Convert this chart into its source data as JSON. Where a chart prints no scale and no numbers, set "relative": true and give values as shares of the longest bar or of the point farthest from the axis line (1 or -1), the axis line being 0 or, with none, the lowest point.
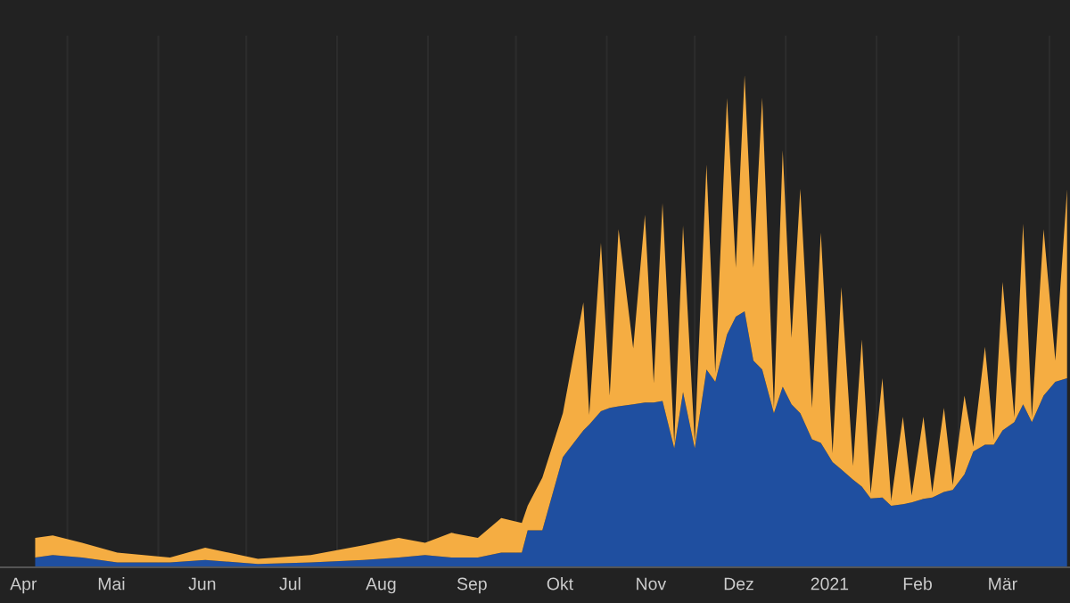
{
  "chart_data": {
    "type": "area",
    "stacked": true,
    "relative": true,
    "grid": "x",
    "legend": false,
    "x": [
      "2020-04-20",
      "2020-04-26",
      "2020-05-06",
      "2020-05-18",
      "2020-06-05",
      "2020-06-17",
      "2020-07-05",
      "2020-07-23",
      "2020-08-10",
      "2020-08-22",
      "2020-08-31",
      "2020-09-09",
      "2020-09-18",
      "2020-09-26",
      "2020-10-03",
      "2020-10-05",
      "2020-10-10",
      "2020-10-17",
      "2020-10-24",
      "2020-10-26",
      "2020-10-30",
      "2020-11-02",
      "2020-11-05",
      "2020-11-10",
      "2020-11-14",
      "2020-11-17",
      "2020-11-20",
      "2020-11-24",
      "2020-11-27",
      "2020-12-01",
      "2020-12-05",
      "2020-12-08",
      "2020-12-12",
      "2020-12-15",
      "2020-12-18",
      "2020-12-21",
      "2020-12-24",
      "2020-12-28",
      "2020-12-31",
      "2021-01-03",
      "2021-01-06",
      "2021-01-10",
      "2021-01-13",
      "2021-01-17",
      "2021-01-20",
      "2021-01-24",
      "2021-01-27",
      "2021-01-30",
      "2021-02-03",
      "2021-02-06",
      "2021-02-10",
      "2021-02-13",
      "2021-02-17",
      "2021-02-20",
      "2021-02-24",
      "2021-02-27",
      "2021-03-03",
      "2021-03-06",
      "2021-03-10",
      "2021-03-13",
      "2021-03-16",
      "2021-03-20",
      "2021-03-23",
      "2021-03-26",
      "2021-03-30",
      "2021-04-03",
      "2021-04-07"
    ],
    "series": [
      {
        "color": "#1f4fa0",
        "values": [
          0.02,
          0.025,
          0.02,
          0.01,
          0.01,
          0.015,
          0.007,
          0.01,
          0.015,
          0.02,
          0.025,
          0.02,
          0.02,
          0.03,
          0.03,
          0.075,
          0.075,
          0.224,
          0.278,
          0.29,
          0.317,
          0.324,
          0.327,
          0.331,
          0.335,
          0.335,
          0.338,
          0.242,
          0.356,
          0.242,
          0.402,
          0.377,
          0.473,
          0.509,
          0.52,
          0.42,
          0.402,
          0.313,
          0.367,
          0.331,
          0.313,
          0.26,
          0.253,
          0.214,
          0.199,
          0.178,
          0.164,
          0.14,
          0.142,
          0.125,
          0.128,
          0.132,
          0.139,
          0.142,
          0.153,
          0.157,
          0.189,
          0.235,
          0.249,
          0.249,
          0.278,
          0.295,
          0.331,
          0.295,
          0.349,
          0.377,
          0.384
        ]
      },
      {
        "color": "#f5ad42",
        "values": [
          0.04,
          0.04,
          0.03,
          0.02,
          0.01,
          0.025,
          0.01,
          0.015,
          0.03,
          0.04,
          0.025,
          0.05,
          0.04,
          0.07,
          0.06,
          0.05,
          0.107,
          0.089,
          0.26,
          0.02,
          0.342,
          0.025,
          0.36,
          0.114,
          0.381,
          0.039,
          0.402,
          0.01,
          0.338,
          0.011,
          0.416,
          0.018,
          0.48,
          0.1,
          0.48,
          0.189,
          0.552,
          0.011,
          0.48,
          0.135,
          0.456,
          0.064,
          0.427,
          0.018,
          0.37,
          0.028,
          0.299,
          0.01,
          0.242,
          0.011,
          0.178,
          0.014,
          0.167,
          0.01,
          0.171,
          0.01,
          0.16,
          0.01,
          0.199,
          0.01,
          0.302,
          0.01,
          0.367,
          0.01,
          0.338,
          0.043,
          0.384
        ]
      }
    ],
    "xlim": [
      "2020-04-08",
      "2021-04-08"
    ],
    "xticks": [
      {
        "value": "2020-05-01",
        "label": null
      },
      {
        "value": "2020-06-01",
        "label": null
      },
      {
        "value": "2020-07-01",
        "label": null
      },
      {
        "value": "2020-08-01",
        "label": null
      },
      {
        "value": "2020-09-01",
        "label": null
      },
      {
        "value": "2020-10-01",
        "label": null
      },
      {
        "value": "2020-11-01",
        "label": null
      },
      {
        "value": "2020-12-01",
        "label": null
      },
      {
        "value": "2021-01-01",
        "label": null
      },
      {
        "value": "2021-02-01",
        "label": null
      },
      {
        "value": "2021-03-01",
        "label": null
      },
      {
        "value": "2021-04-01",
        "label": null
      },
      {
        "value": "2020-04-16",
        "label": "Apr"
      },
      {
        "value": "2020-05-16",
        "label": "Mai"
      },
      {
        "value": "2020-06-16",
        "label": "Jun"
      },
      {
        "value": "2020-07-16",
        "label": "Jul"
      },
      {
        "value": "2020-08-16",
        "label": "Aug"
      },
      {
        "value": "2020-09-16",
        "label": "Sep"
      },
      {
        "value": "2020-10-16",
        "label": "Okt"
      },
      {
        "value": "2020-11-16",
        "label": "Nov"
      },
      {
        "value": "2020-12-16",
        "label": "Dez"
      },
      {
        "value": "2021-01-16",
        "label": "2021"
      },
      {
        "value": "2021-02-15",
        "label": "Feb"
      },
      {
        "value": "2021-03-16",
        "label": "Mär"
      }
    ]
  }
}
